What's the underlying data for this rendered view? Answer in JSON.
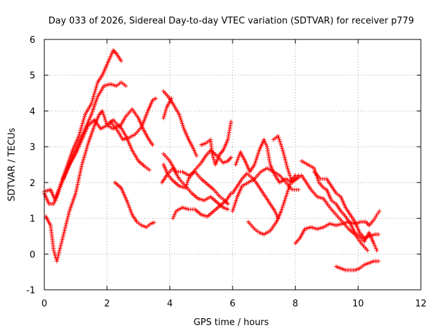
{
  "chart_data": {
    "type": "scatter",
    "title": "Day 033 of 2026, Sidereal Day-to-day VTEC variation (SDTVAR) for receiver p779",
    "xlabel": "GPS time / hours",
    "ylabel": "SDTVAR / TECUs",
    "xlim": [
      0,
      12
    ],
    "ylim": [
      -1,
      6
    ],
    "xticks": [
      "0",
      "2",
      "4",
      "6",
      "8",
      "10",
      "12"
    ],
    "yticks": [
      "-1",
      "0",
      "1",
      "2",
      "3",
      "4",
      "5",
      "6"
    ],
    "grid": true,
    "marker": "+",
    "colors": {
      "series": "#ff0000",
      "grid": "#a0a0a0",
      "axis": "#000000"
    },
    "series": [
      {
        "name": "arc-1",
        "points": [
          [
            0.0,
            1.7
          ],
          [
            0.15,
            1.4
          ],
          [
            0.3,
            1.4
          ],
          [
            0.5,
            1.9
          ],
          [
            0.7,
            2.4
          ],
          [
            0.9,
            2.9
          ],
          [
            1.1,
            3.3
          ],
          [
            1.3,
            3.9
          ],
          [
            1.5,
            4.2
          ],
          [
            1.7,
            4.8
          ],
          [
            1.85,
            5.0
          ],
          [
            2.0,
            5.3
          ],
          [
            2.2,
            5.7
          ],
          [
            2.3,
            5.6
          ],
          [
            2.45,
            5.4
          ]
        ]
      },
      {
        "name": "arc-2",
        "points": [
          [
            0.0,
            1.75
          ],
          [
            0.2,
            1.8
          ],
          [
            0.35,
            1.5
          ],
          [
            0.5,
            1.85
          ],
          [
            0.7,
            2.3
          ],
          [
            0.9,
            2.7
          ],
          [
            1.1,
            3.1
          ],
          [
            1.3,
            3.5
          ],
          [
            1.5,
            3.9
          ],
          [
            1.7,
            4.4
          ],
          [
            1.9,
            4.7
          ],
          [
            2.1,
            4.75
          ],
          [
            2.3,
            4.7
          ],
          [
            2.45,
            4.8
          ],
          [
            2.6,
            4.7
          ]
        ]
      },
      {
        "name": "arc-3",
        "points": [
          [
            0.05,
            1.05
          ],
          [
            0.2,
            0.8
          ],
          [
            0.3,
            0.1
          ],
          [
            0.4,
            -0.2
          ],
          [
            0.6,
            0.5
          ],
          [
            0.8,
            1.2
          ],
          [
            1.0,
            1.7
          ],
          [
            1.2,
            2.5
          ],
          [
            1.4,
            3.1
          ],
          [
            1.6,
            3.6
          ],
          [
            1.75,
            3.9
          ],
          [
            1.85,
            4.0
          ],
          [
            2.0,
            3.6
          ],
          [
            2.2,
            3.5
          ],
          [
            2.4,
            3.6
          ],
          [
            2.6,
            3.3
          ],
          [
            2.8,
            2.9
          ],
          [
            3.0,
            2.6
          ],
          [
            3.2,
            2.45
          ],
          [
            3.35,
            2.35
          ]
        ]
      },
      {
        "name": "arc-4",
        "points": [
          [
            0.6,
            2.1
          ],
          [
            0.8,
            2.5
          ],
          [
            1.0,
            2.8
          ],
          [
            1.2,
            3.2
          ],
          [
            1.4,
            3.6
          ],
          [
            1.6,
            3.75
          ],
          [
            1.8,
            3.5
          ],
          [
            2.0,
            3.6
          ],
          [
            2.2,
            3.75
          ],
          [
            2.4,
            3.55
          ],
          [
            2.6,
            3.85
          ],
          [
            2.8,
            4.05
          ],
          [
            3.0,
            3.8
          ],
          [
            3.15,
            3.5
          ],
          [
            3.3,
            3.25
          ],
          [
            3.45,
            3.05
          ]
        ]
      },
      {
        "name": "arc-5",
        "points": [
          [
            2.1,
            3.7
          ],
          [
            2.3,
            3.5
          ],
          [
            2.5,
            3.2
          ],
          [
            2.7,
            3.25
          ],
          [
            2.9,
            3.35
          ],
          [
            3.1,
            3.55
          ],
          [
            3.3,
            4.0
          ],
          [
            3.45,
            4.3
          ],
          [
            3.55,
            4.35
          ]
        ]
      },
      {
        "name": "arc-6",
        "points": [
          [
            2.25,
            2.0
          ],
          [
            2.45,
            1.85
          ],
          [
            2.65,
            1.45
          ],
          [
            2.8,
            1.1
          ],
          [
            2.95,
            0.9
          ],
          [
            3.1,
            0.8
          ],
          [
            3.25,
            0.75
          ],
          [
            3.4,
            0.85
          ],
          [
            3.5,
            0.88
          ]
        ]
      },
      {
        "name": "arc-7",
        "points": [
          [
            3.8,
            4.55
          ],
          [
            3.95,
            4.4
          ],
          [
            4.1,
            4.2
          ],
          [
            4.3,
            3.9
          ],
          [
            4.45,
            3.5
          ],
          [
            4.6,
            3.2
          ],
          [
            4.75,
            2.95
          ],
          [
            4.85,
            2.75
          ]
        ]
      },
      {
        "name": "arc-8",
        "points": [
          [
            3.8,
            3.8
          ],
          [
            3.9,
            4.1
          ],
          [
            4.05,
            4.35
          ]
        ]
      },
      {
        "name": "arc-9",
        "points": [
          [
            3.8,
            2.8
          ],
          [
            4.0,
            2.6
          ],
          [
            4.2,
            2.3
          ],
          [
            4.4,
            2.3
          ],
          [
            4.6,
            2.2
          ],
          [
            4.8,
            2.3
          ],
          [
            5.0,
            2.1
          ],
          [
            5.2,
            1.95
          ],
          [
            5.4,
            1.8
          ],
          [
            5.6,
            1.6
          ],
          [
            5.75,
            1.5
          ],
          [
            5.85,
            1.4
          ]
        ]
      },
      {
        "name": "arc-10",
        "points": [
          [
            3.8,
            2.5
          ],
          [
            3.95,
            2.2
          ],
          [
            4.1,
            2.05
          ],
          [
            4.3,
            1.9
          ],
          [
            4.5,
            1.85
          ],
          [
            4.6,
            2.1
          ],
          [
            4.8,
            2.35
          ],
          [
            5.0,
            2.55
          ],
          [
            5.15,
            2.75
          ],
          [
            5.3,
            2.9
          ],
          [
            5.5,
            2.75
          ],
          [
            5.7,
            2.55
          ],
          [
            5.85,
            2.6
          ],
          [
            5.95,
            2.7
          ]
        ]
      },
      {
        "name": "arc-11",
        "points": [
          [
            3.75,
            2.0
          ],
          [
            3.9,
            2.2
          ],
          [
            4.1,
            2.4
          ],
          [
            4.3,
            2.1
          ],
          [
            4.5,
            1.9
          ],
          [
            4.7,
            1.7
          ],
          [
            4.9,
            1.55
          ],
          [
            5.1,
            1.5
          ],
          [
            5.3,
            1.6
          ],
          [
            5.5,
            1.45
          ],
          [
            5.7,
            1.3
          ],
          [
            5.85,
            1.25
          ]
        ]
      },
      {
        "name": "arc-12",
        "points": [
          [
            4.1,
            1.0
          ],
          [
            4.2,
            1.2
          ],
          [
            4.4,
            1.3
          ],
          [
            4.6,
            1.25
          ],
          [
            4.8,
            1.25
          ],
          [
            5.0,
            1.1
          ],
          [
            5.2,
            1.05
          ],
          [
            5.4,
            1.2
          ],
          [
            5.6,
            1.35
          ],
          [
            5.8,
            1.5
          ],
          [
            5.95,
            1.7
          ]
        ]
      },
      {
        "name": "arc-13",
        "points": [
          [
            5.0,
            3.05
          ],
          [
            5.15,
            3.1
          ],
          [
            5.3,
            3.2
          ],
          [
            5.35,
            2.8
          ],
          [
            5.45,
            2.5
          ],
          [
            5.6,
            2.8
          ],
          [
            5.7,
            2.9
          ],
          [
            5.85,
            3.2
          ],
          [
            5.95,
            3.7
          ]
        ]
      },
      {
        "name": "arc-14",
        "points": [
          [
            6.0,
            1.7
          ],
          [
            6.15,
            1.9
          ],
          [
            6.3,
            2.1
          ],
          [
            6.45,
            2.25
          ],
          [
            6.6,
            2.15
          ],
          [
            6.75,
            2.0
          ],
          [
            6.9,
            1.8
          ],
          [
            7.05,
            1.6
          ],
          [
            7.2,
            1.4
          ],
          [
            7.35,
            1.2
          ],
          [
            7.45,
            1.0
          ]
        ]
      },
      {
        "name": "arc-15",
        "points": [
          [
            6.0,
            1.2
          ],
          [
            6.15,
            1.6
          ],
          [
            6.3,
            1.9
          ],
          [
            6.5,
            2.0
          ],
          [
            6.7,
            2.1
          ],
          [
            6.9,
            2.3
          ],
          [
            7.1,
            2.4
          ],
          [
            7.3,
            2.3
          ],
          [
            7.5,
            2.2
          ],
          [
            7.7,
            2.0
          ],
          [
            7.9,
            1.8
          ],
          [
            8.1,
            1.8
          ]
        ]
      },
      {
        "name": "arc-16",
        "points": [
          [
            6.1,
            2.5
          ],
          [
            6.25,
            2.85
          ],
          [
            6.4,
            2.6
          ],
          [
            6.55,
            2.3
          ],
          [
            6.7,
            2.5
          ],
          [
            6.85,
            2.9
          ],
          [
            7.0,
            3.2
          ],
          [
            7.1,
            3.0
          ],
          [
            7.2,
            2.5
          ],
          [
            7.35,
            2.2
          ],
          [
            7.5,
            2.0
          ],
          [
            7.7,
            2.1
          ],
          [
            7.9,
            2.0
          ],
          [
            8.1,
            2.2
          ]
        ]
      },
      {
        "name": "arc-17",
        "points": [
          [
            6.5,
            0.9
          ],
          [
            6.7,
            0.7
          ],
          [
            6.85,
            0.6
          ],
          [
            7.0,
            0.55
          ],
          [
            7.2,
            0.65
          ],
          [
            7.4,
            0.9
          ],
          [
            7.55,
            1.2
          ],
          [
            7.7,
            1.6
          ],
          [
            7.85,
            2.0
          ],
          [
            8.0,
            2.2
          ]
        ]
      },
      {
        "name": "arc-18",
        "points": [
          [
            7.3,
            3.2
          ],
          [
            7.45,
            3.3
          ],
          [
            7.6,
            2.9
          ],
          [
            7.75,
            2.4
          ],
          [
            7.9,
            2.0
          ],
          [
            8.05,
            2.1
          ],
          [
            8.2,
            2.2
          ],
          [
            8.35,
            2.0
          ],
          [
            8.5,
            1.8
          ],
          [
            8.7,
            1.6
          ],
          [
            8.9,
            1.55
          ],
          [
            9.1,
            1.3
          ],
          [
            9.3,
            1.1
          ],
          [
            9.5,
            0.9
          ],
          [
            9.7,
            0.7
          ],
          [
            9.9,
            0.55
          ],
          [
            10.1,
            0.3
          ],
          [
            10.3,
            0.1
          ]
        ]
      },
      {
        "name": "arc-19",
        "points": [
          [
            8.2,
            2.6
          ],
          [
            8.4,
            2.5
          ],
          [
            8.6,
            2.4
          ],
          [
            8.75,
            2.0
          ],
          [
            8.9,
            1.85
          ],
          [
            9.0,
            1.8
          ],
          [
            9.15,
            1.5
          ],
          [
            9.3,
            1.4
          ],
          [
            9.45,
            1.2
          ],
          [
            9.6,
            1.05
          ],
          [
            9.75,
            0.85
          ],
          [
            9.9,
            0.6
          ],
          [
            10.05,
            0.5
          ],
          [
            10.2,
            0.35
          ],
          [
            10.35,
            0.6
          ],
          [
            10.5,
            0.3
          ],
          [
            10.6,
            0.1
          ]
        ]
      },
      {
        "name": "arc-20",
        "points": [
          [
            8.6,
            2.3
          ],
          [
            8.8,
            2.1
          ],
          [
            9.0,
            2.1
          ],
          [
            9.15,
            1.9
          ],
          [
            9.3,
            1.7
          ],
          [
            9.45,
            1.6
          ],
          [
            9.6,
            1.3
          ],
          [
            9.75,
            1.1
          ],
          [
            9.9,
            0.9
          ],
          [
            10.05,
            0.6
          ],
          [
            10.2,
            0.45
          ],
          [
            10.35,
            0.5
          ],
          [
            10.55,
            0.55
          ],
          [
            10.65,
            0.55
          ]
        ]
      },
      {
        "name": "arc-21",
        "points": [
          [
            8.0,
            0.3
          ],
          [
            8.15,
            0.45
          ],
          [
            8.3,
            0.7
          ],
          [
            8.5,
            0.75
          ],
          [
            8.7,
            0.7
          ],
          [
            8.9,
            0.75
          ],
          [
            9.1,
            0.85
          ],
          [
            9.3,
            0.8
          ],
          [
            9.5,
            0.85
          ],
          [
            9.7,
            0.9
          ],
          [
            9.9,
            0.85
          ],
          [
            10.1,
            0.9
          ],
          [
            10.25,
            0.9
          ],
          [
            10.35,
            0.8
          ],
          [
            10.5,
            0.95
          ],
          [
            10.6,
            1.1
          ],
          [
            10.68,
            1.2
          ]
        ]
      },
      {
        "name": "arc-22",
        "points": [
          [
            9.3,
            -0.35
          ],
          [
            9.45,
            -0.4
          ],
          [
            9.6,
            -0.45
          ],
          [
            9.75,
            -0.45
          ],
          [
            9.9,
            -0.45
          ],
          [
            10.05,
            -0.4
          ],
          [
            10.2,
            -0.3
          ],
          [
            10.35,
            -0.25
          ],
          [
            10.5,
            -0.2
          ],
          [
            10.65,
            -0.2
          ]
        ]
      }
    ]
  }
}
